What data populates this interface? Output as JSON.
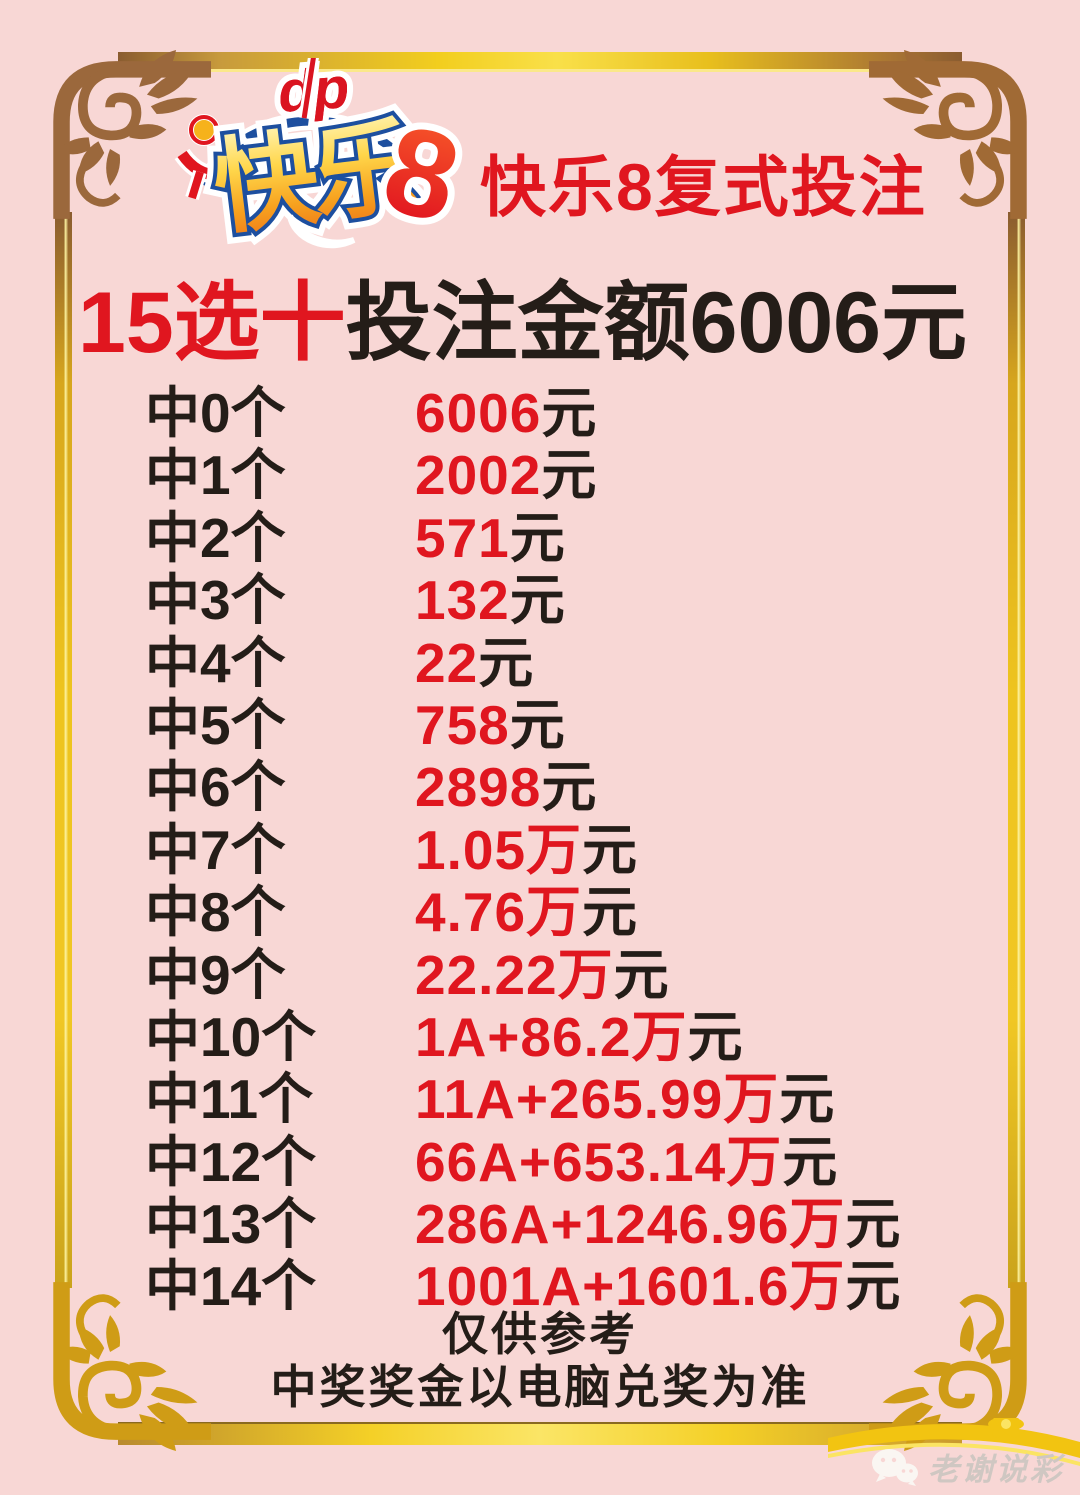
{
  "colors": {
    "background_pink": "#f8d7d5",
    "accent_red": "#e0161f",
    "text_black": "#241d18",
    "frame_gold": "#f0c724",
    "frame_bronze": "#9b683c",
    "logo_blue": "#1d4f9f"
  },
  "logo": {
    "kuaile": "快乐",
    "eight": "8",
    "mark": "china-sports-lottery-emblem"
  },
  "header": {
    "title": "快乐8复式投注"
  },
  "headline": {
    "highlight": "15选十",
    "rest": "投注金额6006元"
  },
  "prizes": {
    "rows": [
      {
        "label": "中0个",
        "amount": "6006",
        "unit": "元"
      },
      {
        "label": "中1个",
        "amount": "2002",
        "unit": "元"
      },
      {
        "label": "中2个",
        "amount": "571",
        "unit": "元"
      },
      {
        "label": "中3个",
        "amount": "132",
        "unit": "元"
      },
      {
        "label": "中4个",
        "amount": "22",
        "unit": "元"
      },
      {
        "label": "中5个",
        "amount": "758",
        "unit": "元"
      },
      {
        "label": "中6个",
        "amount": "2898",
        "unit": "元"
      },
      {
        "label": "中7个",
        "amount": "1.05万",
        "unit": "元"
      },
      {
        "label": "中8个",
        "amount": "4.76万",
        "unit": "元"
      },
      {
        "label": "中9个",
        "amount": "22.22万",
        "unit": "元"
      },
      {
        "label": "中10个",
        "amount": "1A+86.2万",
        "unit": "元"
      },
      {
        "label": "中11个",
        "amount": "11A+265.99万",
        "unit": "元"
      },
      {
        "label": "中12个",
        "amount": "66A+653.14万",
        "unit": "元"
      },
      {
        "label": "中13个",
        "amount": "286A+1246.96万",
        "unit": "元"
      },
      {
        "label": "中14个",
        "amount": "1001A+1601.6万",
        "unit": "元"
      }
    ]
  },
  "footer": {
    "line1": "仅供参考",
    "line2": "中奖奖金以电脑兑奖为准"
  },
  "watermark": {
    "icon": "wechat-icon",
    "label": "老谢说彩"
  }
}
